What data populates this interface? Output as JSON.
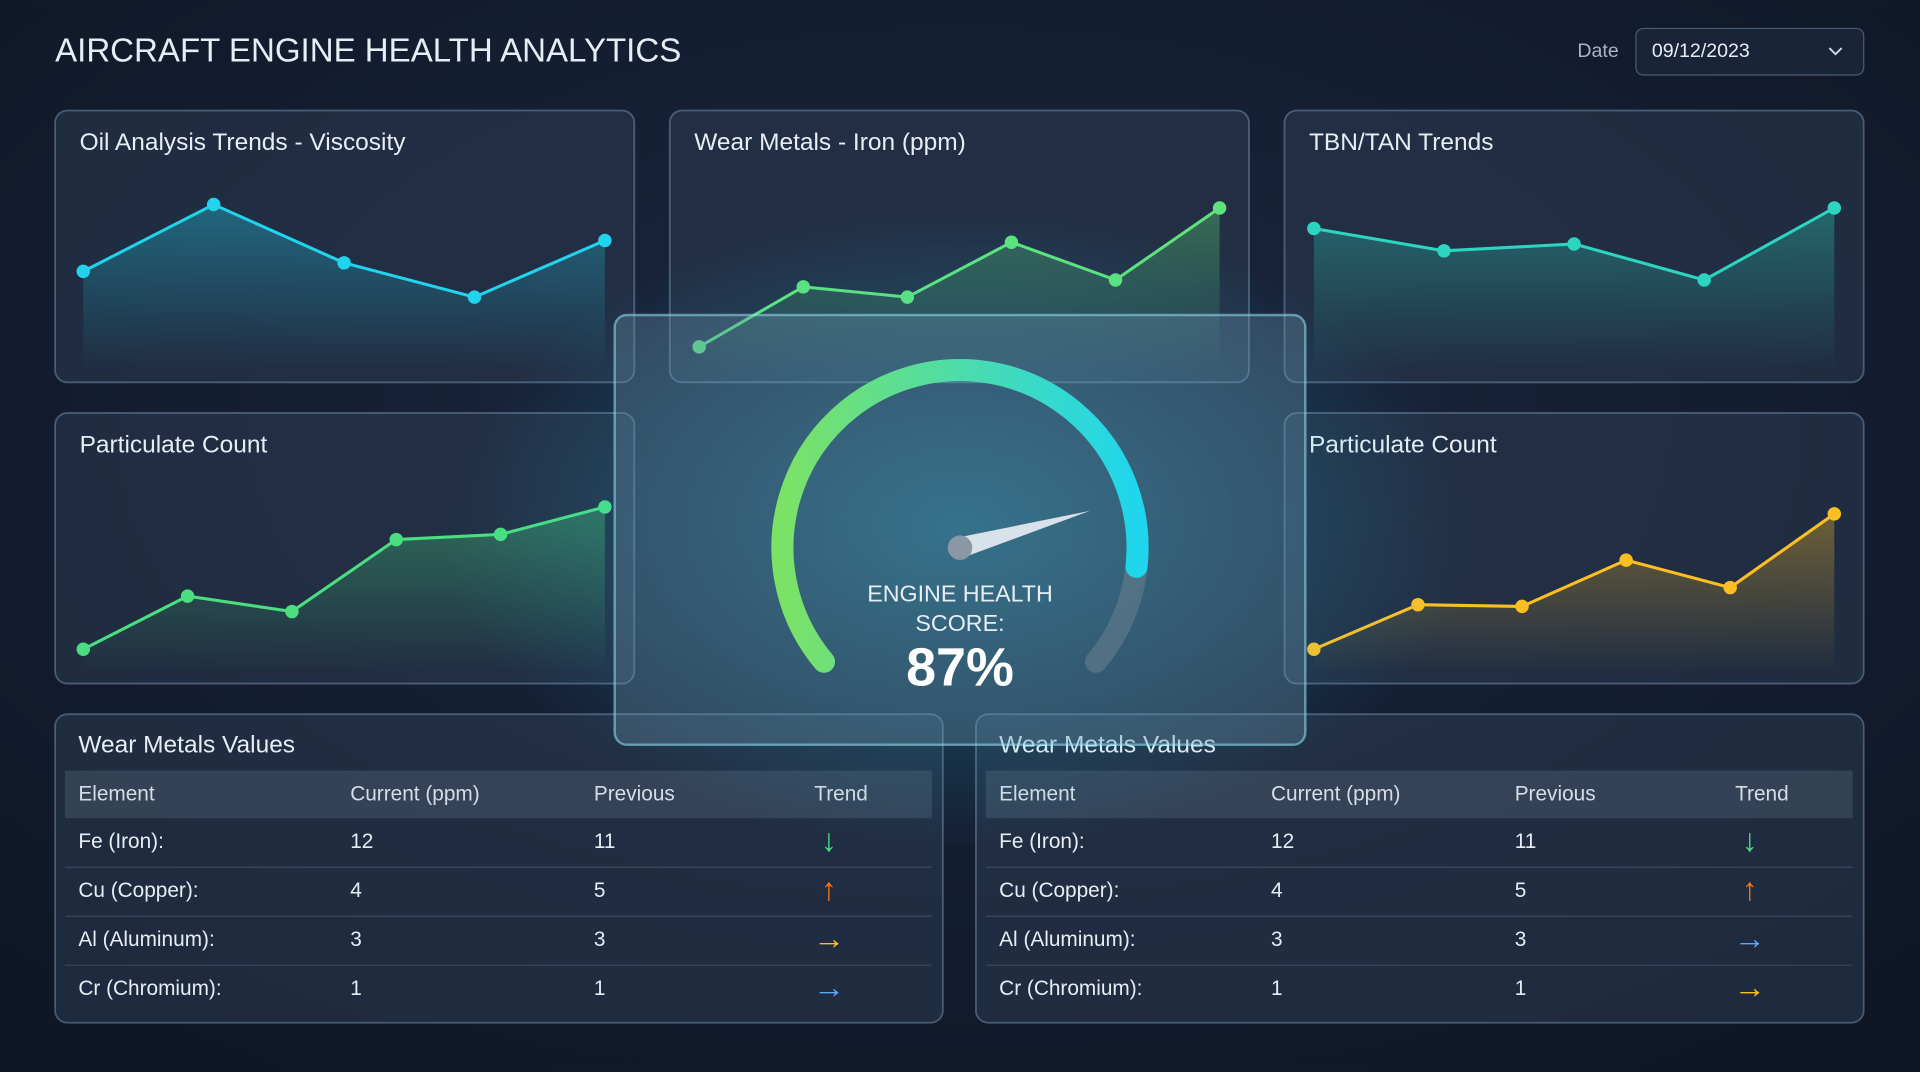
{
  "header": {
    "title": "AIRCRAFT ENGINE HEALTH ANALYTICS",
    "date_label": "Date",
    "date_value": "09/12/2023"
  },
  "chart_data": [
    {
      "type": "line",
      "title": "Oil Analysis Trends - Viscosity",
      "categories": [
        null,
        null,
        null,
        null,
        null
      ],
      "values": [
        49,
        88,
        54,
        34,
        67
      ],
      "color": "#22d3ee",
      "ylim": [
        0,
        100
      ]
    },
    {
      "type": "line",
      "title": "Wear Metals - Iron (ppm)",
      "categories": [
        null,
        null,
        null,
        null,
        null,
        null
      ],
      "values": [
        5,
        40,
        34,
        66,
        44,
        86
      ],
      "color": "#5ee27a",
      "ylim": [
        0,
        100
      ]
    },
    {
      "type": "line",
      "title": "TBN/TAN Trends",
      "categories": [
        null,
        null,
        null,
        null,
        null
      ],
      "values": [
        74,
        61,
        65,
        44,
        86
      ],
      "color": "#2dd4bf",
      "ylim": [
        0,
        100
      ]
    },
    {
      "type": "line",
      "title": "Particulate Count",
      "categories": [
        null,
        null,
        null,
        null,
        null,
        null
      ],
      "values": [
        5,
        36,
        27,
        69,
        72,
        88
      ],
      "color": "#4ade80",
      "ylim": [
        0,
        100
      ]
    },
    {
      "type": "line",
      "title": "Particulate Count",
      "categories": [
        null,
        null,
        null,
        null,
        null,
        null
      ],
      "values": [
        5,
        31,
        30,
        57,
        41,
        84
      ],
      "color": "#fbbf24",
      "ylim": [
        0,
        100
      ]
    }
  ],
  "gauge": {
    "label": [
      "ENGINE HEALTH",
      "SCORE:"
    ],
    "value": 87,
    "value_label": "87%",
    "range": [
      0,
      100
    ]
  },
  "tables": [
    {
      "title": "Wear Metals Values",
      "columns": [
        "Element",
        "Current (ppm)",
        "Previous",
        "Trend"
      ],
      "rows": [
        [
          "Fe (Iron):",
          "12",
          "11",
          "↓"
        ],
        [
          "Cu (Copper):",
          "4",
          "5",
          "↑"
        ],
        [
          "Al (Aluminum):",
          "3",
          "3",
          "→"
        ],
        [
          "Cr (Chromium):",
          "1",
          "1",
          "→"
        ]
      ],
      "trend_colors": [
        "#4ade80",
        "#f97316",
        "#fbbf24",
        "#60a5fa"
      ]
    },
    {
      "title": "Wear Metals Values",
      "columns": [
        "Element",
        "Current (ppm)",
        "Previous",
        "Trend"
      ],
      "rows": [
        [
          "Fe (Iron):",
          "12",
          "11",
          "↓"
        ],
        [
          "Cu (Copper):",
          "4",
          "5",
          "↑"
        ],
        [
          "Al (Aluminum):",
          "3",
          "3",
          "→"
        ],
        [
          "Cr (Chromium):",
          "1",
          "1",
          "→"
        ]
      ],
      "trend_colors": [
        "#4ade80",
        "#f97316",
        "#60a5fa",
        "#fbbf24"
      ]
    }
  ]
}
